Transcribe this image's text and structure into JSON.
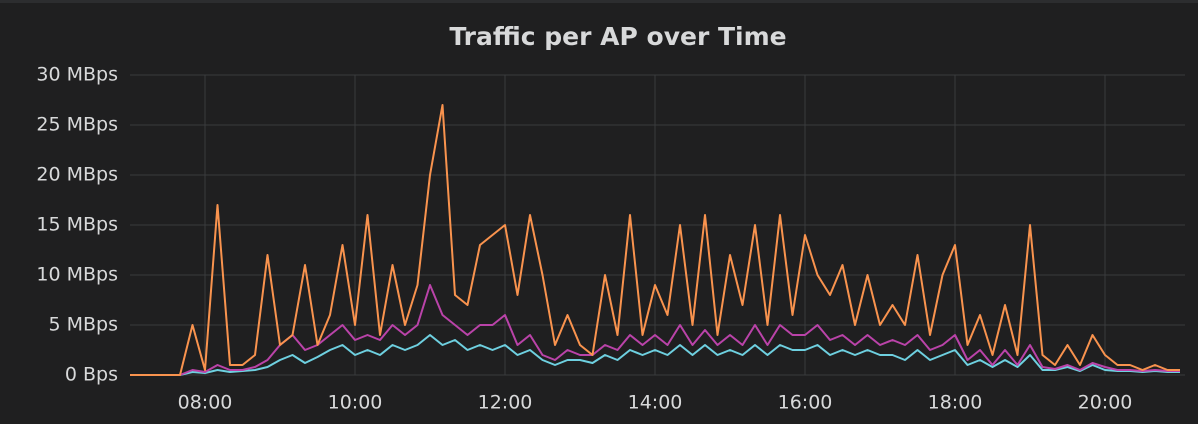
{
  "chart_data": {
    "type": "line",
    "title": "Traffic per AP over Time",
    "x": [
      420,
      430,
      440,
      450,
      460,
      470,
      480,
      490,
      500,
      510,
      520,
      530,
      540,
      550,
      560,
      570,
      580,
      590,
      600,
      610,
      620,
      630,
      640,
      650,
      660,
      670,
      680,
      690,
      700,
      710,
      720,
      730,
      740,
      750,
      760,
      770,
      780,
      790,
      800,
      810,
      820,
      830,
      840,
      850,
      860,
      870,
      880,
      890,
      900,
      910,
      920,
      930,
      940,
      950,
      960,
      970,
      980,
      990,
      1000,
      1010,
      1020,
      1030,
      1040,
      1050,
      1060,
      1070,
      1080,
      1090,
      1100,
      1110,
      1120,
      1130,
      1140,
      1150,
      1160,
      1170,
      1180,
      1190,
      1200,
      1210,
      1220,
      1230,
      1240,
      1250,
      1260
    ],
    "xlim": [
      420,
      1264
    ],
    "xticks": [
      {
        "value": 480,
        "label": "08:00"
      },
      {
        "value": 600,
        "label": "10:00"
      },
      {
        "value": 720,
        "label": "12:00"
      },
      {
        "value": 840,
        "label": "14:00"
      },
      {
        "value": 960,
        "label": "16:00"
      },
      {
        "value": 1080,
        "label": "18:00"
      },
      {
        "value": 1200,
        "label": "20:00"
      }
    ],
    "ylim": [
      0,
      30
    ],
    "yticks": [
      {
        "value": 0,
        "label": "0 Bps"
      },
      {
        "value": 5,
        "label": "5 MBps"
      },
      {
        "value": 10,
        "label": "10 MBps"
      },
      {
        "value": 15,
        "label": "15 MBps"
      },
      {
        "value": 20,
        "label": "20 MBps"
      },
      {
        "value": 25,
        "label": "25 MBps"
      },
      {
        "value": 30,
        "label": "30 MBps"
      }
    ],
    "grid": true,
    "series": [
      {
        "color": "#6ed0e0",
        "values": [
          0,
          0,
          0,
          0,
          0,
          0.3,
          0.2,
          0.5,
          0.3,
          0.4,
          0.5,
          0.8,
          1.5,
          2,
          1.2,
          1.8,
          2.5,
          3,
          2,
          2.5,
          2,
          3,
          2.5,
          3,
          4,
          3,
          3.5,
          2.5,
          3,
          2.5,
          3,
          2,
          2.5,
          1.5,
          1,
          1.5,
          1.5,
          1.2,
          2,
          1.5,
          2.5,
          2,
          2.5,
          2,
          3,
          2,
          3,
          2,
          2.5,
          2,
          3,
          2,
          3,
          2.5,
          2.5,
          3,
          2,
          2.5,
          2,
          2.5,
          2,
          2,
          1.5,
          2.5,
          1.5,
          2,
          2.5,
          1,
          1.5,
          0.8,
          1.5,
          0.8,
          2,
          0.5,
          0.5,
          0.8,
          0.4,
          1,
          0.5,
          0.4,
          0.4,
          0.3,
          0.4,
          0.3,
          0.3
        ]
      },
      {
        "color": "#ba43a9",
        "values": [
          0,
          0,
          0,
          0,
          0,
          0.5,
          0.3,
          1,
          0.5,
          0.5,
          0.8,
          1.5,
          3,
          4,
          2.5,
          3,
          4,
          5,
          3.5,
          4,
          3.5,
          5,
          4,
          5,
          9,
          6,
          5,
          4,
          5,
          5,
          6,
          3,
          4,
          2,
          1.5,
          2.5,
          2,
          2,
          3,
          2.5,
          4,
          3,
          4,
          3,
          5,
          3,
          4.5,
          3,
          4,
          3,
          5,
          3,
          5,
          4,
          4,
          5,
          3.5,
          4,
          3,
          4,
          3,
          3.5,
          3,
          4,
          2.5,
          3,
          4,
          1.5,
          2.5,
          1,
          2.5,
          1,
          3,
          0.8,
          0.6,
          1,
          0.5,
          1.2,
          0.8,
          0.5,
          0.5,
          0.4,
          0.5,
          0.4,
          0.4
        ]
      },
      {
        "color": "#f9934e",
        "values": [
          0,
          0,
          0,
          0,
          0,
          5,
          0.5,
          17,
          1,
          1,
          2,
          12,
          3,
          4,
          11,
          3,
          6,
          13,
          5,
          16,
          4,
          11,
          5,
          9,
          20,
          27,
          8,
          7,
          13,
          14,
          15,
          8,
          16,
          10,
          3,
          6,
          3,
          2,
          10,
          4,
          16,
          4,
          9,
          6,
          15,
          5,
          16,
          4,
          12,
          7,
          15,
          5,
          16,
          6,
          14,
          10,
          8,
          11,
          5,
          10,
          5,
          7,
          5,
          12,
          4,
          10,
          13,
          3,
          6,
          2,
          7,
          2,
          15,
          2,
          1,
          3,
          1,
          4,
          2,
          1,
          1,
          0.5,
          1,
          0.5,
          0.5
        ]
      }
    ]
  }
}
